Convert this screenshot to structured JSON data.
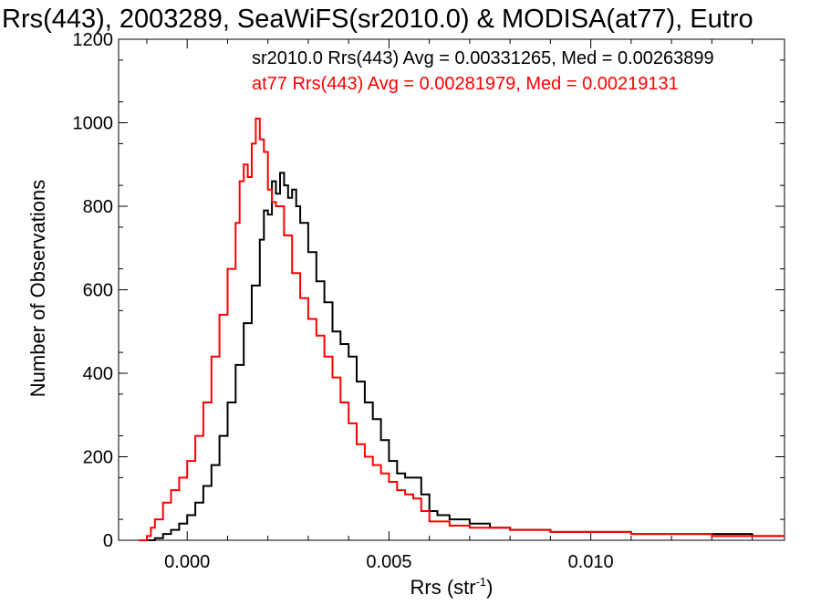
{
  "chart_data": {
    "type": "histogram-step",
    "title": "Rrs(443), 2003289, SeaWiFS(sr2010.0) & MODISA(at77), Eutro",
    "xlabel": "Rrs (str",
    "xlabel_sup": "-1",
    "xlabel_close": ")",
    "ylabel": "Number of Observations",
    "xlim": [
      -0.0017,
      0.0148
    ],
    "ylim": [
      0,
      1200
    ],
    "xticks": [
      0.0,
      0.005,
      0.01
    ],
    "xtick_labels": [
      "0.000",
      "0.005",
      "0.010"
    ],
    "yticks": [
      0,
      200,
      400,
      600,
      800,
      1000,
      1200
    ],
    "ytick_labels": [
      "0",
      "200",
      "400",
      "600",
      "800",
      "1000",
      "1200"
    ],
    "grid": false,
    "legend_placement": "top-right",
    "series": [
      {
        "name": "sr2010.0 Rrs(443) Avg = 0.00331265, Med = 0.00263899",
        "color": "#000000",
        "x": [
          -0.0012,
          -0.0008,
          -0.0006,
          -0.0004,
          -0.0002,
          0.0,
          0.0002,
          0.0004,
          0.0006,
          0.0008,
          0.001,
          0.0012,
          0.0014,
          0.0016,
          0.0018,
          0.0019,
          0.002,
          0.0021,
          0.0022,
          0.0023,
          0.0024,
          0.0025,
          0.0026,
          0.0027,
          0.0028,
          0.003,
          0.0032,
          0.0034,
          0.0036,
          0.0038,
          0.004,
          0.0042,
          0.0044,
          0.0046,
          0.0048,
          0.005,
          0.0052,
          0.0054,
          0.0056,
          0.0058,
          0.006,
          0.0062,
          0.0065,
          0.007,
          0.0075,
          0.008,
          0.009,
          0.01,
          0.011,
          0.012,
          0.013,
          0.014,
          0.0148
        ],
        "values": [
          0,
          5,
          15,
          25,
          40,
          60,
          90,
          130,
          180,
          250,
          330,
          420,
          520,
          610,
          720,
          790,
          780,
          860,
          830,
          880,
          850,
          820,
          840,
          800,
          760,
          690,
          620,
          570,
          500,
          470,
          440,
          380,
          330,
          290,
          240,
          190,
          160,
          150,
          150,
          110,
          70,
          60,
          50,
          40,
          30,
          25,
          20,
          20,
          15,
          15,
          15,
          10,
          10
        ]
      },
      {
        "name": "at77 Rrs(443) Avg = 0.00281979, Med = 0.00219131",
        "color": "#ff0000",
        "x": [
          -0.0012,
          -0.001,
          -0.0009,
          -0.0008,
          -0.0006,
          -0.0004,
          -0.0002,
          0.0,
          0.0002,
          0.0004,
          0.0006,
          0.0008,
          0.001,
          0.0012,
          0.0013,
          0.0014,
          0.0015,
          0.0016,
          0.0017,
          0.0018,
          0.0019,
          0.002,
          0.0021,
          0.0022,
          0.0024,
          0.0026,
          0.0028,
          0.003,
          0.0032,
          0.0034,
          0.0036,
          0.0038,
          0.004,
          0.0042,
          0.0044,
          0.0046,
          0.0048,
          0.005,
          0.0052,
          0.0054,
          0.0056,
          0.0058,
          0.006,
          0.0065,
          0.007,
          0.008,
          0.009,
          0.01,
          0.011,
          0.012,
          0.013,
          0.014,
          0.0148
        ],
        "values": [
          0,
          10,
          30,
          50,
          90,
          120,
          150,
          190,
          250,
          330,
          440,
          540,
          650,
          760,
          860,
          900,
          870,
          950,
          1010,
          960,
          930,
          840,
          810,
          800,
          730,
          640,
          580,
          530,
          490,
          440,
          390,
          330,
          280,
          230,
          200,
          180,
          160,
          140,
          120,
          110,
          100,
          70,
          45,
          35,
          30,
          25,
          20,
          20,
          15,
          15,
          10,
          10,
          10
        ]
      }
    ]
  }
}
